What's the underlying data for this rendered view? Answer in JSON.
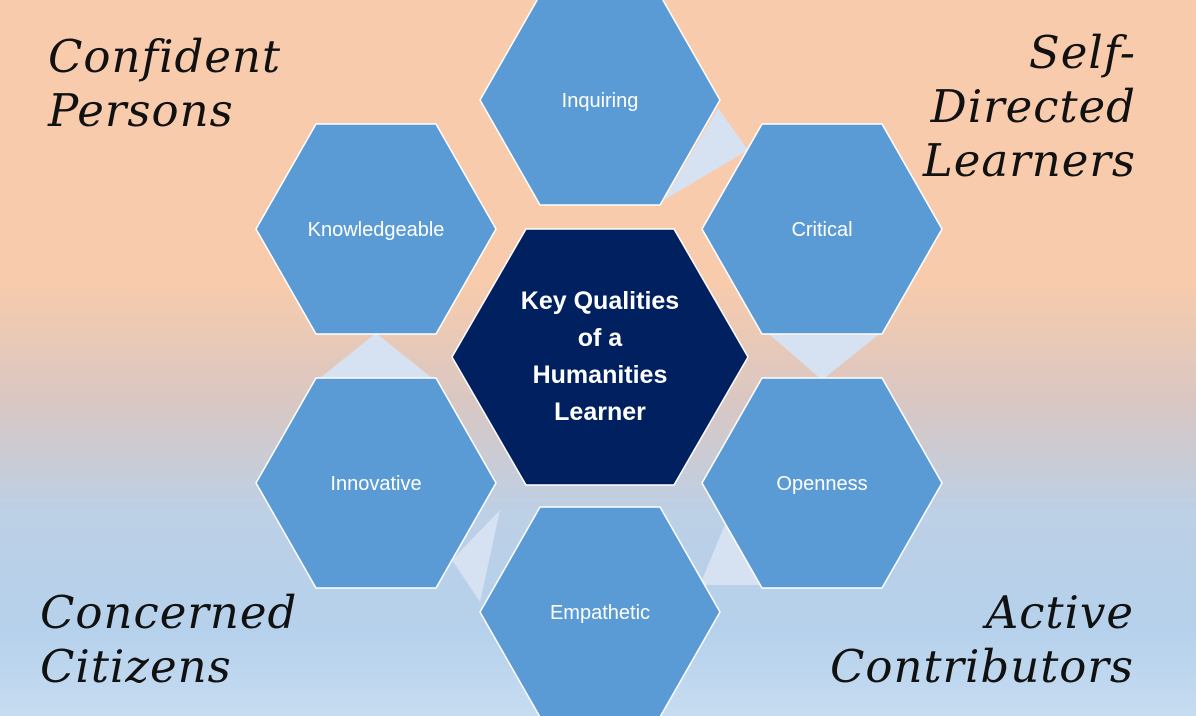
{
  "diagram": {
    "center_label_lines": [
      "Key Qualities",
      "of a",
      "Humanities",
      "Learner"
    ],
    "hexagons": [
      {
        "id": "inquiring",
        "label": "Inquiring"
      },
      {
        "id": "critical",
        "label": "Critical"
      },
      {
        "id": "openness",
        "label": "Openness"
      },
      {
        "id": "empathetic",
        "label": "Empathetic"
      },
      {
        "id": "innovative",
        "label": "Innovative"
      },
      {
        "id": "knowledgeable",
        "label": "Knowledgeable"
      }
    ],
    "colors": {
      "outer_hex": "#5b9bd5",
      "center_hex": "#002060",
      "connector": "#d6e2f2",
      "background_top": "#f7cbac",
      "background_bottom": "#c6dcf1"
    }
  },
  "corners": {
    "top_left": [
      "Confident",
      "Persons"
    ],
    "top_right": [
      "Self-",
      "Directed",
      "Learners"
    ],
    "bottom_left": [
      "Concerned",
      "Citizens"
    ],
    "bottom_right": [
      "Active",
      "Contributors"
    ]
  }
}
